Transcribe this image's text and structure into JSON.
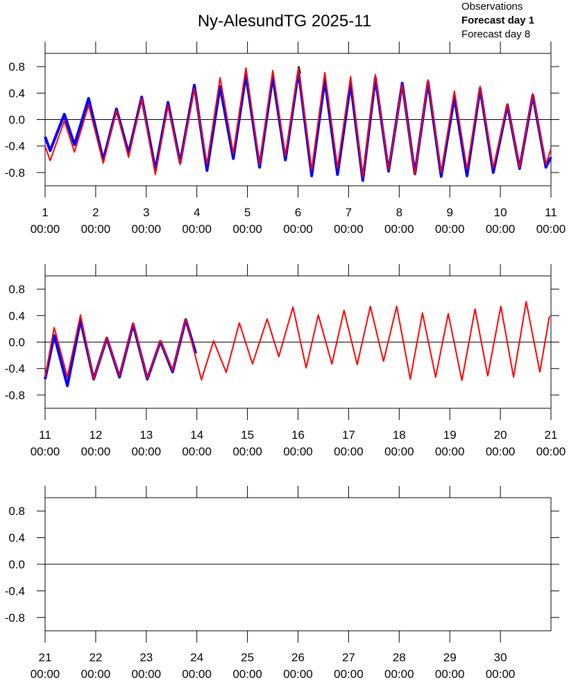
{
  "chart_data": [
    {
      "type": "line",
      "title": "Ny-AlesundTG 2025-11",
      "legend": "top-right",
      "xlim": [
        1,
        11
      ],
      "ylim": [
        -1,
        1
      ],
      "xticks": [
        {
          "value": 1,
          "label": "1",
          "time": "00:00"
        },
        {
          "value": 2,
          "label": "2",
          "time": "00:00"
        },
        {
          "value": 3,
          "label": "3",
          "time": "00:00"
        },
        {
          "value": 4,
          "label": "4",
          "time": "00:00"
        },
        {
          "value": 5,
          "label": "5",
          "time": "00:00"
        },
        {
          "value": 6,
          "label": "6",
          "time": "00:00"
        },
        {
          "value": 7,
          "label": "7",
          "time": "00:00"
        },
        {
          "value": 8,
          "label": "8",
          "time": "00:00"
        },
        {
          "value": 9,
          "label": "9",
          "time": "00:00"
        },
        {
          "value": 10,
          "label": "10",
          "time": "00:00"
        },
        {
          "value": 11,
          "label": "11",
          "time": "00:00"
        }
      ],
      "yticks": [
        -0.8,
        -0.4,
        {
          "value": 0,
          "label": "0.0"
        },
        0.4,
        0.8
      ],
      "series": [
        {
          "name": "Observations",
          "color": "#000000",
          "x": [
            5.99,
            6.02,
            6.05
          ],
          "values": [
            0.78,
            0.8,
            0.7
          ]
        },
        {
          "name": "Forecast day 1",
          "color": "#0000ff",
          "x": [
            1.0,
            1.1,
            1.38,
            1.58,
            1.86,
            2.15,
            2.41,
            2.65,
            2.91,
            3.18,
            3.43,
            3.67,
            3.95,
            4.2,
            4.46,
            4.72,
            4.97,
            5.24,
            5.5,
            5.75,
            6.01,
            6.27,
            6.53,
            6.78,
            7.04,
            7.28,
            7.53,
            7.79,
            8.06,
            8.31,
            8.57,
            8.83,
            9.09,
            9.34,
            9.6,
            9.86,
            10.14,
            10.38,
            10.64,
            10.9,
            11.0
          ],
          "values": [
            -0.26,
            -0.47,
            0.08,
            -0.38,
            0.32,
            -0.61,
            0.16,
            -0.51,
            0.34,
            -0.76,
            0.26,
            -0.65,
            0.52,
            -0.77,
            0.5,
            -0.59,
            0.68,
            -0.72,
            0.65,
            -0.61,
            0.73,
            -0.85,
            0.6,
            -0.83,
            0.55,
            -0.92,
            0.63,
            -0.78,
            0.55,
            -0.82,
            0.57,
            -0.86,
            0.34,
            -0.85,
            0.47,
            -0.8,
            0.22,
            -0.74,
            0.37,
            -0.72,
            -0.57
          ]
        },
        {
          "name": "Forecast day 8",
          "color": "#ff0000",
          "x": [
            1.0,
            1.1,
            1.38,
            1.58,
            1.86,
            2.15,
            2.41,
            2.65,
            2.91,
            3.18,
            3.43,
            3.67,
            3.95,
            4.2,
            4.46,
            4.72,
            4.97,
            5.24,
            5.5,
            5.75,
            6.01,
            6.27,
            6.53,
            6.78,
            7.04,
            7.28,
            7.53,
            7.79,
            8.06,
            8.31,
            8.57,
            8.83,
            9.09,
            9.34,
            9.6,
            9.86,
            10.14,
            10.38,
            10.64,
            10.9,
            11.0
          ],
          "values": [
            -0.4,
            -0.62,
            -0.02,
            -0.49,
            0.22,
            -0.66,
            0.14,
            -0.57,
            0.32,
            -0.83,
            0.22,
            -0.68,
            0.47,
            -0.67,
            0.63,
            -0.51,
            0.78,
            -0.68,
            0.74,
            -0.55,
            0.78,
            -0.76,
            0.71,
            -0.73,
            0.65,
            -0.87,
            0.68,
            -0.76,
            0.53,
            -0.83,
            0.6,
            -0.8,
            0.43,
            -0.75,
            0.5,
            -0.73,
            0.24,
            -0.73,
            0.39,
            -0.68,
            -0.44
          ]
        }
      ]
    },
    {
      "type": "line",
      "xlim": [
        11,
        21
      ],
      "ylim": [
        -1,
        1
      ],
      "xticks": [
        {
          "value": 11,
          "label": "11",
          "time": "00:00"
        },
        {
          "value": 12,
          "label": "12",
          "time": "00:00"
        },
        {
          "value": 13,
          "label": "13",
          "time": "00:00"
        },
        {
          "value": 14,
          "label": "14",
          "time": "00:00"
        },
        {
          "value": 15,
          "label": "15",
          "time": "00:00"
        },
        {
          "value": 16,
          "label": "16",
          "time": "00:00"
        },
        {
          "value": 17,
          "label": "17",
          "time": "00:00"
        },
        {
          "value": 18,
          "label": "18",
          "time": "00:00"
        },
        {
          "value": 19,
          "label": "19",
          "time": "00:00"
        },
        {
          "value": 20,
          "label": "20",
          "time": "00:00"
        },
        {
          "value": 21,
          "label": "21",
          "time": "00:00"
        }
      ],
      "yticks": [
        -0.8,
        -0.4,
        {
          "value": 0,
          "label": "0.0"
        },
        0.4,
        0.8
      ],
      "series": [
        {
          "name": "Forecast day 1",
          "color": "#0000ff",
          "x": [
            11.0,
            11.18,
            11.44,
            11.7,
            11.96,
            12.22,
            12.47,
            12.74,
            13.02,
            13.28,
            13.52,
            13.78,
            13.98
          ],
          "values": [
            -0.56,
            0.1,
            -0.66,
            0.33,
            -0.56,
            0.06,
            -0.53,
            0.27,
            -0.56,
            0.01,
            -0.45,
            0.34,
            -0.17
          ]
        },
        {
          "name": "Forecast day 8",
          "color": "#ff0000",
          "x": [
            11.0,
            11.18,
            11.44,
            11.7,
            11.96,
            12.22,
            12.47,
            12.74,
            13.02,
            13.28,
            13.52,
            13.78,
            14.09,
            14.33,
            14.58,
            14.84,
            15.1,
            15.39,
            15.62,
            15.9,
            16.16,
            16.4,
            16.67,
            16.91,
            17.17,
            17.43,
            17.69,
            17.95,
            18.22,
            18.46,
            18.72,
            18.97,
            19.24,
            19.5,
            19.75,
            20.01,
            20.26,
            20.51,
            20.78,
            20.97
          ],
          "values": [
            -0.53,
            0.22,
            -0.53,
            0.41,
            -0.56,
            0.07,
            -0.51,
            0.29,
            -0.55,
            0.02,
            -0.43,
            0.35,
            -0.57,
            0.02,
            -0.46,
            0.29,
            -0.33,
            0.35,
            -0.22,
            0.53,
            -0.39,
            0.41,
            -0.33,
            0.48,
            -0.34,
            0.54,
            -0.29,
            0.54,
            -0.56,
            0.44,
            -0.53,
            0.43,
            -0.58,
            0.5,
            -0.51,
            0.54,
            -0.53,
            0.61,
            -0.45,
            0.39
          ]
        }
      ]
    },
    {
      "type": "line",
      "xlim": [
        21,
        31
      ],
      "ylim": [
        -1,
        1
      ],
      "xticks": [
        {
          "value": 21,
          "label": "21",
          "time": "00:00"
        },
        {
          "value": 22,
          "label": "22",
          "time": "00:00"
        },
        {
          "value": 23,
          "label": "23",
          "time": "00:00"
        },
        {
          "value": 24,
          "label": "24",
          "time": "00:00"
        },
        {
          "value": 25,
          "label": "25",
          "time": "00:00"
        },
        {
          "value": 26,
          "label": "26",
          "time": "00:00"
        },
        {
          "value": 27,
          "label": "27",
          "time": "00:00"
        },
        {
          "value": 28,
          "label": "28",
          "time": "00:00"
        },
        {
          "value": 29,
          "label": "29",
          "time": "00:00"
        },
        {
          "value": 30,
          "label": "30",
          "time": "00:00"
        }
      ],
      "yticks": [
        -0.8,
        -0.4,
        {
          "value": 0,
          "label": "0.0"
        },
        0.4,
        0.8
      ],
      "series": []
    }
  ]
}
